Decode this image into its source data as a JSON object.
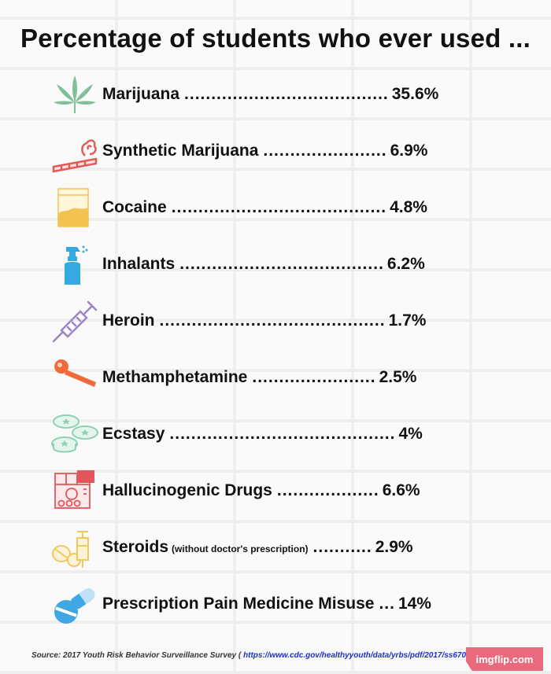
{
  "title": "Percentage of students who ever used ...",
  "items": [
    {
      "label": "Marijuana",
      "dots": "......................................",
      "value": "35.6%",
      "icon": "cannabis-leaf-icon"
    },
    {
      "label": "Synthetic Marijuana",
      "dots": ".......................",
      "value": "6.9%",
      "icon": "joint-icon"
    },
    {
      "label": "Cocaine",
      "dots": "........................................",
      "value": "4.8%",
      "icon": "powder-bag-icon"
    },
    {
      "label": "Inhalants",
      "dots": "......................................",
      "value": "6.2%",
      "icon": "spray-bottle-icon"
    },
    {
      "label": "Heroin",
      "dots": "..........................................",
      "value": "1.7%",
      "icon": "syringe-icon"
    },
    {
      "label": "Methamphetamine",
      "dots": ".......................",
      "value": "2.5%",
      "icon": "pipe-icon"
    },
    {
      "label": "Ecstasy",
      "dots": "..........................................",
      "value": "4%",
      "icon": "pills-icon"
    },
    {
      "label": "Hallucinogenic Drugs",
      "dots": "...................",
      "value": "6.6%",
      "icon": "blotter-icon"
    },
    {
      "label": "Steroids",
      "note": "(without doctor's prescription)",
      "dots": "...........",
      "value": "2.9%",
      "icon": "steroid-vial-icon"
    },
    {
      "label": "Prescription Pain Medicine Misuse",
      "dots": "...",
      "value": "14%",
      "icon": "capsule-icon"
    }
  ],
  "source": {
    "prefix": "Source: 2017 Youth Risk Behavior Surveillance Survey (",
    "url": "https://www.cdc.gov/healthyyouth/data/yrbs/pdf/2017/ss6708.pdf",
    "suffix": ")"
  },
  "badge": "imgflip.com",
  "colors": {
    "leaf": "#7fbf9a",
    "joint": "#e25a57",
    "powder": "#f2c350",
    "spray": "#36a9e1",
    "syringe": "#9b86c7",
    "pipe": "#f06b3a",
    "pills": "#8fd1b0",
    "blotter": "#e0565a",
    "steroid": "#f0c95e",
    "capsule": "#3fa7e3"
  }
}
